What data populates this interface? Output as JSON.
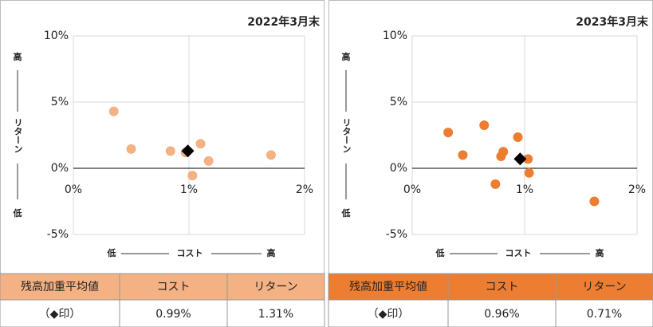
{
  "chart_data": [
    {
      "type": "scatter",
      "title": "2022年3月末",
      "color": "#f4b183",
      "x": [
        0.35,
        0.5,
        0.84,
        0.97,
        1.1,
        1.03,
        1.17,
        1.71
      ],
      "y": [
        4.3,
        1.45,
        1.3,
        1.2,
        1.85,
        -0.55,
        0.55,
        1.0
      ],
      "highlight": {
        "x": 0.99,
        "y": 1.31,
        "color": "#000000"
      },
      "xlim": [
        0,
        2
      ],
      "xticks": [
        {
          "value": 0,
          "label": "0%"
        },
        {
          "value": 1,
          "label": "1%"
        },
        {
          "value": 2,
          "label": "2%"
        }
      ],
      "ylim": [
        -5,
        10
      ],
      "yticks": [
        {
          "value": -5,
          "label": "-5%"
        },
        {
          "value": 0,
          "label": "0%"
        },
        {
          "value": 5,
          "label": "5%"
        },
        {
          "value": 10,
          "label": "10%"
        }
      ],
      "grid": true,
      "y_label_high": "高",
      "y_label": "リターン",
      "y_label_low": "低",
      "x_label_low": "低",
      "x_label": "コスト",
      "x_label_high": "高",
      "table": {
        "header": [
          "残高加重平均値",
          "コスト",
          "リターン"
        ],
        "row": [
          "（◆印）",
          "0.99%",
          "1.31%"
        ],
        "header_color": "#f4b183",
        "header_text_color": "#333333"
      }
    },
    {
      "type": "scatter",
      "title": "2023年3月末",
      "color": "#ed7d31",
      "x": [
        0.32,
        0.45,
        0.64,
        0.81,
        0.79,
        0.74,
        0.94,
        1.03,
        1.04,
        1.62
      ],
      "y": [
        2.7,
        1.0,
        3.25,
        1.25,
        0.9,
        -1.2,
        2.35,
        0.7,
        -0.35,
        -2.5
      ],
      "highlight": {
        "x": 0.96,
        "y": 0.71,
        "color": "#000000"
      },
      "xlim": [
        0,
        2
      ],
      "xticks": [
        {
          "value": 0,
          "label": "0%"
        },
        {
          "value": 1,
          "label": "1%"
        },
        {
          "value": 2,
          "label": "2%"
        }
      ],
      "ylim": [
        -5,
        10
      ],
      "yticks": [
        {
          "value": -5,
          "label": "-5%"
        },
        {
          "value": 0,
          "label": "0%"
        },
        {
          "value": 5,
          "label": "5%"
        },
        {
          "value": 10,
          "label": "10%"
        }
      ],
      "grid": true,
      "y_label_high": "高",
      "y_label": "リターン",
      "y_label_low": "低",
      "x_label_low": "低",
      "x_label": "コスト",
      "x_label_high": "高",
      "table": {
        "header": [
          "残高加重平均値",
          "コスト",
          "リターン"
        ],
        "row": [
          "（◆印）",
          "0.96%",
          "0.71%"
        ],
        "header_color": "#ed7d31",
        "header_text_color": "#ffffff"
      }
    }
  ]
}
